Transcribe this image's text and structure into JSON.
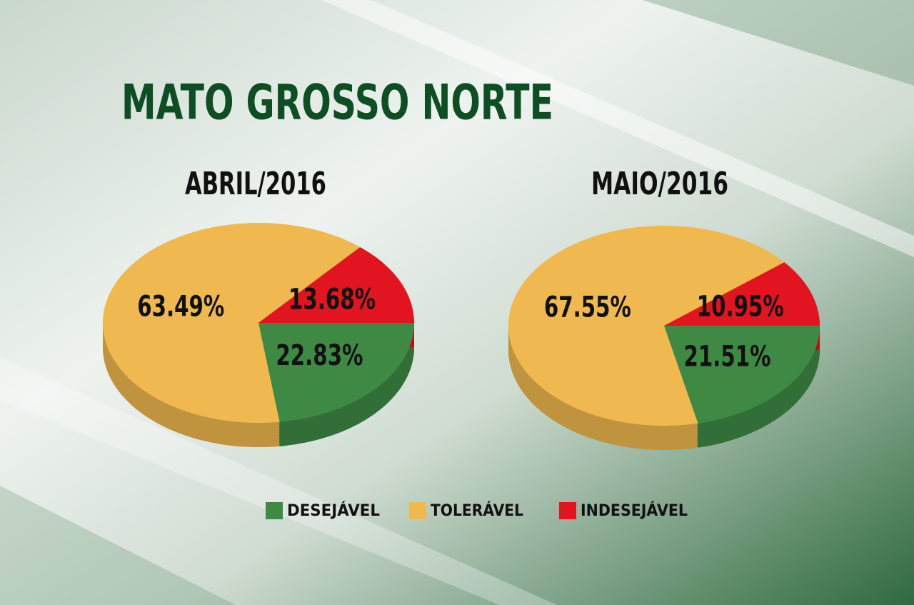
{
  "title": "MATO GROSSO NORTE",
  "legend": [
    {
      "name": "DESEJÁVEL",
      "color": "#3e8a45"
    },
    {
      "name": "TOLERÁVEL",
      "color": "#f0b94f"
    },
    {
      "name": "INDESEJÁVEL",
      "color": "#e2141f"
    }
  ],
  "chart_data": [
    {
      "type": "pie",
      "title": "ABRIL/2016",
      "values": [
        22.83,
        63.49,
        13.68
      ],
      "value_labels": [
        "22.83%",
        "63.49%",
        "13.68%"
      ]
    },
    {
      "type": "pie",
      "title": "MAIO/2016",
      "values": [
        21.51,
        67.55,
        10.95
      ],
      "value_labels": [
        "21.51%",
        "67.55%",
        "10.95%"
      ]
    }
  ]
}
